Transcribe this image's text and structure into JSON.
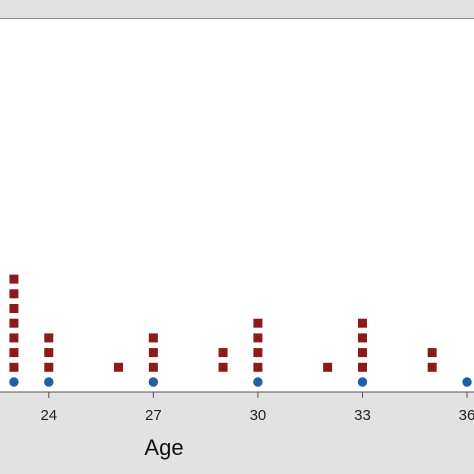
{
  "chart_data": {
    "type": "scatter",
    "subtype": "dotplot",
    "xlabel": "Age",
    "xlim": [
      22.6,
      36.2
    ],
    "x_ticks": [
      "24",
      "27",
      "30",
      "33",
      "36"
    ],
    "grid": false,
    "colors": {
      "series1": "#8b1a1a",
      "series2": "#1f5fa8",
      "plot_bg": "#ffffff",
      "frame_bg": "#e2e2e2"
    },
    "series": [
      {
        "marker": "square",
        "color": "#8b1a1a",
        "points": [
          {
            "x": 23,
            "count": 7
          },
          {
            "x": 24,
            "count": 3
          },
          {
            "x": 26,
            "count": 1
          },
          {
            "x": 27,
            "count": 3
          },
          {
            "x": 29,
            "count": 2
          },
          {
            "x": 30,
            "count": 4
          },
          {
            "x": 32,
            "count": 1
          },
          {
            "x": 33,
            "count": 4
          },
          {
            "x": 35,
            "count": 2
          }
        ]
      },
      {
        "marker": "circle",
        "color": "#1f5fa8",
        "points": [
          {
            "x": 23,
            "count": 1
          },
          {
            "x": 24,
            "count": 1
          },
          {
            "x": 27,
            "count": 1
          },
          {
            "x": 30,
            "count": 1
          },
          {
            "x": 33,
            "count": 1
          },
          {
            "x": 36,
            "count": 1
          }
        ]
      }
    ]
  }
}
